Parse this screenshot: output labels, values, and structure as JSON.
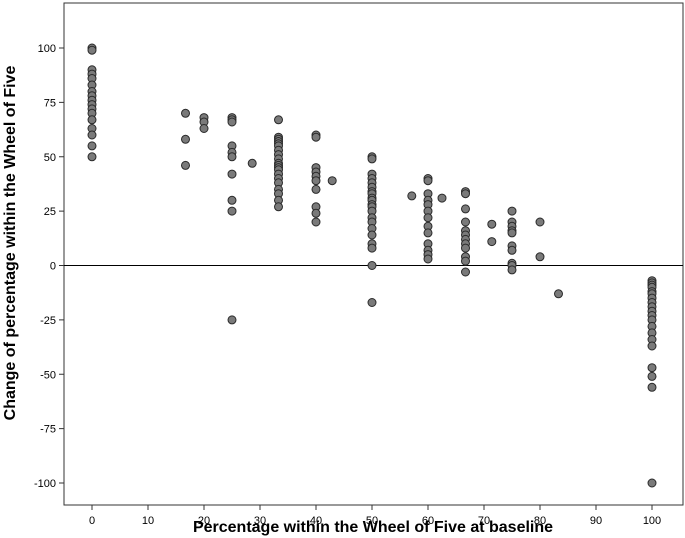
{
  "chart_data": {
    "type": "scatter",
    "title": "",
    "xlabel": "Percentage within the Wheel of Five at baseline",
    "ylabel": "Change of percentage within the Wheel of Five",
    "xlim": [
      -5,
      105
    ],
    "ylim": [
      -100,
      120
    ],
    "xticks": [
      0,
      10,
      20,
      30,
      40,
      50,
      60,
      70,
      80,
      90,
      100
    ],
    "yticks": [
      -100,
      -75,
      -50,
      -25,
      0,
      25,
      50,
      75,
      100
    ],
    "reference_line_y": 0,
    "grid": false,
    "legend": "none",
    "marker_color": "#7a7a7a",
    "marker_edge_color": "#2a2a2a",
    "points": [
      [
        0,
        100
      ],
      [
        0,
        99
      ],
      [
        0,
        90
      ],
      [
        0,
        88
      ],
      [
        0,
        86
      ],
      [
        0,
        83
      ],
      [
        0,
        80
      ],
      [
        0,
        78
      ],
      [
        0,
        76
      ],
      [
        0,
        74
      ],
      [
        0,
        72
      ],
      [
        0,
        70
      ],
      [
        0,
        67
      ],
      [
        0,
        63
      ],
      [
        0,
        60
      ],
      [
        0,
        55
      ],
      [
        0,
        50
      ],
      [
        16.7,
        70
      ],
      [
        16.7,
        58
      ],
      [
        16.7,
        46
      ],
      [
        20,
        68
      ],
      [
        20,
        66
      ],
      [
        20,
        63
      ],
      [
        25,
        68
      ],
      [
        25,
        67
      ],
      [
        25,
        66
      ],
      [
        25,
        55
      ],
      [
        25,
        52
      ],
      [
        25,
        50
      ],
      [
        25,
        42
      ],
      [
        25,
        30
      ],
      [
        25,
        25
      ],
      [
        25,
        -25
      ],
      [
        28.6,
        47
      ],
      [
        33.3,
        67
      ],
      [
        33.3,
        59
      ],
      [
        33.3,
        58
      ],
      [
        33.3,
        57
      ],
      [
        33.3,
        56
      ],
      [
        33.3,
        55
      ],
      [
        33.3,
        53
      ],
      [
        33.3,
        51
      ],
      [
        33.3,
        49
      ],
      [
        33.3,
        47
      ],
      [
        33.3,
        46
      ],
      [
        33.3,
        45
      ],
      [
        33.3,
        44
      ],
      [
        33.3,
        42
      ],
      [
        33.3,
        40
      ],
      [
        33.3,
        38
      ],
      [
        33.3,
        35
      ],
      [
        33.3,
        33
      ],
      [
        33.3,
        30
      ],
      [
        33.3,
        27
      ],
      [
        40,
        60
      ],
      [
        40,
        59
      ],
      [
        40,
        45
      ],
      [
        40,
        43
      ],
      [
        40,
        41
      ],
      [
        40,
        39
      ],
      [
        40,
        35
      ],
      [
        40,
        27
      ],
      [
        40,
        24
      ],
      [
        40,
        20
      ],
      [
        42.9,
        39
      ],
      [
        50,
        50
      ],
      [
        50,
        49
      ],
      [
        50,
        42
      ],
      [
        50,
        40
      ],
      [
        50,
        38
      ],
      [
        50,
        36
      ],
      [
        50,
        34
      ],
      [
        50,
        33
      ],
      [
        50,
        31
      ],
      [
        50,
        30
      ],
      [
        50,
        28
      ],
      [
        50,
        27
      ],
      [
        50,
        25
      ],
      [
        50,
        22
      ],
      [
        50,
        20
      ],
      [
        50,
        17
      ],
      [
        50,
        14
      ],
      [
        50,
        10
      ],
      [
        50,
        8
      ],
      [
        50,
        0
      ],
      [
        50,
        -17
      ],
      [
        57.1,
        32
      ],
      [
        60,
        40
      ],
      [
        60,
        39
      ],
      [
        60,
        33
      ],
      [
        60,
        30
      ],
      [
        60,
        28
      ],
      [
        60,
        25
      ],
      [
        60,
        22
      ],
      [
        60,
        18
      ],
      [
        60,
        15
      ],
      [
        60,
        10
      ],
      [
        60,
        7
      ],
      [
        60,
        5
      ],
      [
        60,
        3
      ],
      [
        62.5,
        31
      ],
      [
        66.7,
        34
      ],
      [
        66.7,
        33
      ],
      [
        66.7,
        26
      ],
      [
        66.7,
        20
      ],
      [
        66.7,
        16
      ],
      [
        66.7,
        14
      ],
      [
        66.7,
        12
      ],
      [
        66.7,
        10
      ],
      [
        66.7,
        8
      ],
      [
        66.7,
        4
      ],
      [
        66.7,
        2
      ],
      [
        66.7,
        -3
      ],
      [
        71.4,
        19
      ],
      [
        71.4,
        11
      ],
      [
        75,
        25
      ],
      [
        75,
        20
      ],
      [
        75,
        18
      ],
      [
        75,
        16
      ],
      [
        75,
        15
      ],
      [
        75,
        9
      ],
      [
        75,
        7
      ],
      [
        75,
        1
      ],
      [
        75,
        0
      ],
      [
        75,
        -2
      ],
      [
        80,
        20
      ],
      [
        80,
        4
      ],
      [
        83.3,
        -13
      ],
      [
        100,
        -7
      ],
      [
        100,
        -8
      ],
      [
        100,
        -9
      ],
      [
        100,
        -10
      ],
      [
        100,
        -12
      ],
      [
        100,
        -13
      ],
      [
        100,
        -15
      ],
      [
        100,
        -17
      ],
      [
        100,
        -19
      ],
      [
        100,
        -21
      ],
      [
        100,
        -23
      ],
      [
        100,
        -25
      ],
      [
        100,
        -28
      ],
      [
        100,
        -31
      ],
      [
        100,
        -34
      ],
      [
        100,
        -37
      ],
      [
        100,
        -47
      ],
      [
        100,
        -51
      ],
      [
        100,
        -56
      ],
      [
        100,
        -100
      ]
    ]
  }
}
